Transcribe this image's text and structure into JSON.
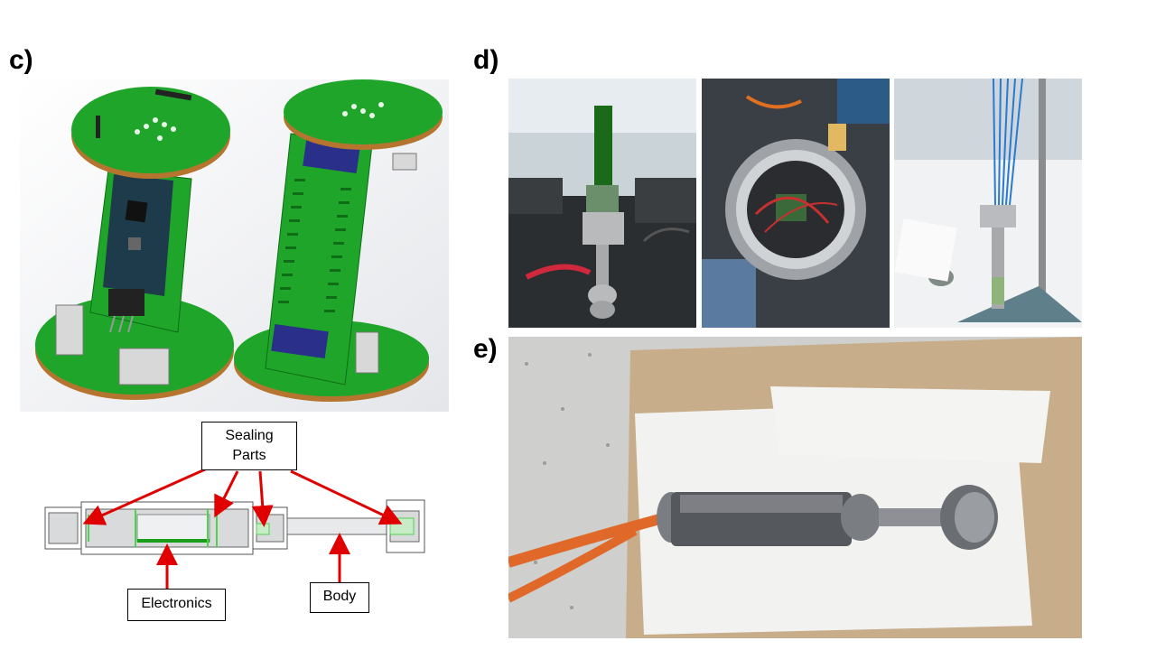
{
  "panels": {
    "c": "c)",
    "d": "d)",
    "e": "e)"
  },
  "callouts": {
    "sealing_parts": "Sealing\nParts",
    "electronics": "Electronics",
    "body": "Body"
  },
  "colors": {
    "pcb_green": "#1fa52a",
    "pcb_edge": "#b5752f",
    "arrow_red": "#e00000",
    "cable_orange": "#e0692a",
    "paper_white": "#f2f2f0",
    "cardboard": "#c7ad8a",
    "steel": "#8e9095"
  }
}
